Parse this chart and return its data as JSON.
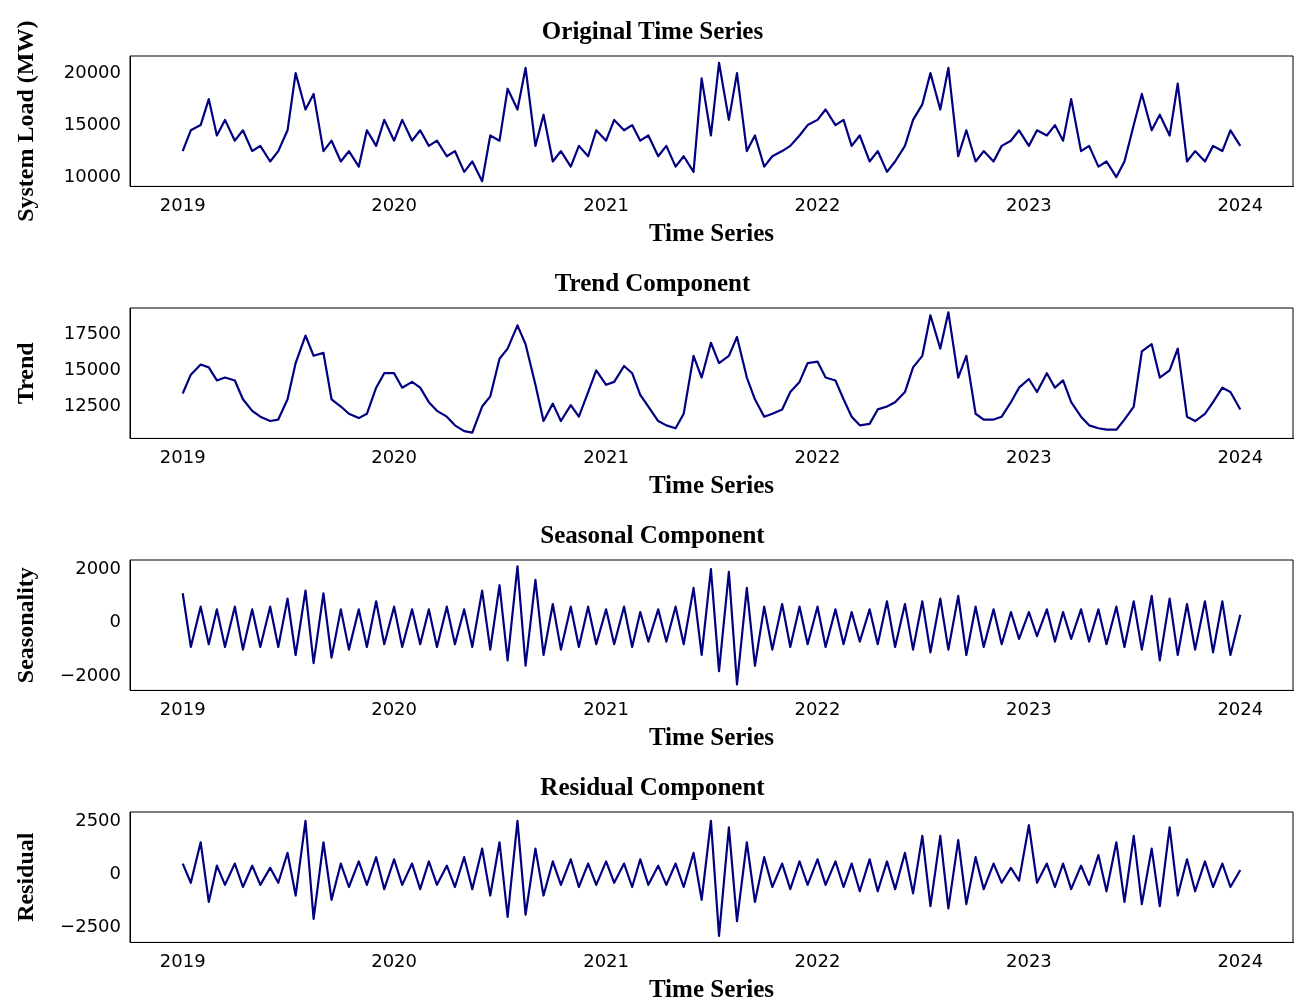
{
  "chart_data": [
    {
      "type": "line",
      "title": "Original Time Series",
      "xlabel": "Time Series",
      "ylabel": "System Load (MW)",
      "x": [
        "2019-01-01",
        "2019-01-15",
        "2019-02-01",
        "2019-02-15",
        "2019-03-01",
        "2019-03-15",
        "2019-04-01",
        "2019-04-15",
        "2019-05-01",
        "2019-05-15",
        "2019-06-01",
        "2019-06-15",
        "2019-07-01",
        "2019-07-15",
        "2019-08-01",
        "2019-08-15",
        "2019-09-01",
        "2019-09-15",
        "2019-10-01",
        "2019-10-15",
        "2019-11-01",
        "2019-11-15",
        "2019-12-01",
        "2019-12-15",
        "2020-01-01",
        "2020-01-15",
        "2020-02-01",
        "2020-02-15",
        "2020-03-01",
        "2020-03-15",
        "2020-04-01",
        "2020-04-15",
        "2020-05-01",
        "2020-05-15",
        "2020-06-01",
        "2020-06-15",
        "2020-07-01",
        "2020-07-15",
        "2020-08-01",
        "2020-08-15",
        "2020-09-01",
        "2020-09-15",
        "2020-10-01",
        "2020-10-15",
        "2020-11-01",
        "2020-11-15",
        "2020-12-01",
        "2020-12-15",
        "2021-01-01",
        "2021-01-15",
        "2021-02-01",
        "2021-02-15",
        "2021-03-01",
        "2021-03-15",
        "2021-04-01",
        "2021-04-15",
        "2021-05-01",
        "2021-05-15",
        "2021-06-01",
        "2021-06-15",
        "2021-07-01",
        "2021-07-15",
        "2021-08-01",
        "2021-08-15",
        "2021-09-01",
        "2021-09-15",
        "2021-10-01",
        "2021-10-15",
        "2021-11-01",
        "2021-11-15",
        "2021-12-01",
        "2021-12-15",
        "2022-01-01",
        "2022-01-15",
        "2022-02-01",
        "2022-02-15",
        "2022-03-01",
        "2022-03-15",
        "2022-04-01",
        "2022-04-15",
        "2022-05-01",
        "2022-05-15",
        "2022-06-01",
        "2022-06-15",
        "2022-07-01",
        "2022-07-15",
        "2022-08-01",
        "2022-08-15",
        "2022-09-01",
        "2022-09-15",
        "2022-10-01",
        "2022-10-15",
        "2022-11-01",
        "2022-11-15",
        "2022-12-01",
        "2022-12-15",
        "2023-01-01",
        "2023-01-15",
        "2023-02-01",
        "2023-02-15",
        "2023-03-01",
        "2023-03-15",
        "2023-04-01",
        "2023-04-15",
        "2023-05-01",
        "2023-05-15",
        "2023-06-01",
        "2023-06-15",
        "2023-07-01",
        "2023-07-15",
        "2023-08-01",
        "2023-08-15",
        "2023-09-01",
        "2023-09-15",
        "2023-10-01",
        "2023-10-15",
        "2023-11-01",
        "2023-11-15",
        "2023-12-01",
        "2023-12-15",
        "2024-01-01"
      ],
      "series": [
        {
          "color": "#000080",
          "values": [
            12500,
            14500,
            15000,
            17500,
            14000,
            15500,
            13500,
            14500,
            12500,
            13000,
            11500,
            12500,
            14500,
            20000,
            16500,
            18000,
            12500,
            13500,
            11500,
            12500,
            11000,
            14500,
            13000,
            15500,
            13500,
            15500,
            13500,
            14500,
            13000,
            13500,
            12000,
            12500,
            10500,
            11500,
            9600,
            14000,
            13500,
            18500,
            16500,
            20500,
            13000,
            16000,
            11500,
            12500,
            11000,
            13000,
            12000,
            14500,
            13500,
            15500,
            14500,
            15000,
            13500,
            14000,
            12000,
            13000,
            11000,
            12000,
            10500,
            19500,
            14000,
            21000,
            15500,
            20000,
            12500,
            14000,
            11000,
            12000,
            12500,
            13000,
            14000,
            15000,
            15500,
            16500,
            15000,
            15500,
            13000,
            14000,
            11500,
            12500,
            10500,
            11500,
            13000,
            15500,
            17000,
            20000,
            16500,
            20500,
            12000,
            14500,
            11500,
            12500,
            11500,
            13000,
            13500,
            14500,
            13000,
            14500,
            14000,
            15000,
            13500,
            17500,
            12500,
            13000,
            11000,
            11500,
            10000,
            11500,
            15000,
            18000,
            14500,
            16000,
            14000,
            19000,
            11500,
            12500,
            11500,
            13000,
            12500,
            14500,
            13000
          ]
        }
      ],
      "xlim": [
        "2018-10-02",
        "2024-04-01"
      ],
      "xticks": [
        "2019",
        "2020",
        "2021",
        "2022",
        "2023",
        "2024"
      ],
      "ylim": [
        9100,
        21650
      ],
      "yticks": [
        10000,
        15000,
        20000
      ]
    },
    {
      "type": "line",
      "title": "Trend Component",
      "xlabel": "Time Series",
      "ylabel": "Trend",
      "x": [
        "2019-01-01",
        "2019-01-15",
        "2019-02-01",
        "2019-02-15",
        "2019-03-01",
        "2019-03-15",
        "2019-04-01",
        "2019-04-15",
        "2019-05-01",
        "2019-05-15",
        "2019-06-01",
        "2019-06-15",
        "2019-07-01",
        "2019-07-15",
        "2019-08-01",
        "2019-08-15",
        "2019-09-01",
        "2019-09-15",
        "2019-10-01",
        "2019-10-15",
        "2019-11-01",
        "2019-11-15",
        "2019-12-01",
        "2019-12-15",
        "2020-01-01",
        "2020-01-15",
        "2020-02-01",
        "2020-02-15",
        "2020-03-01",
        "2020-03-15",
        "2020-04-01",
        "2020-04-15",
        "2020-05-01",
        "2020-05-15",
        "2020-06-01",
        "2020-06-15",
        "2020-07-01",
        "2020-07-15",
        "2020-08-01",
        "2020-08-15",
        "2020-09-01",
        "2020-09-15",
        "2020-10-01",
        "2020-10-15",
        "2020-11-01",
        "2020-11-15",
        "2020-12-01",
        "2020-12-15",
        "2021-01-01",
        "2021-01-15",
        "2021-02-01",
        "2021-02-15",
        "2021-03-01",
        "2021-03-15",
        "2021-04-01",
        "2021-04-15",
        "2021-05-01",
        "2021-05-15",
        "2021-06-01",
        "2021-06-15",
        "2021-07-01",
        "2021-07-15",
        "2021-08-01",
        "2021-08-15",
        "2021-09-01",
        "2021-09-15",
        "2021-10-01",
        "2021-10-15",
        "2021-11-01",
        "2021-11-15",
        "2021-12-01",
        "2021-12-15",
        "2022-01-01",
        "2022-01-15",
        "2022-02-01",
        "2022-02-15",
        "2022-03-01",
        "2022-03-15",
        "2022-04-01",
        "2022-04-15",
        "2022-05-01",
        "2022-05-15",
        "2022-06-01",
        "2022-06-15",
        "2022-07-01",
        "2022-07-15",
        "2022-08-01",
        "2022-08-15",
        "2022-09-01",
        "2022-09-15",
        "2022-10-01",
        "2022-10-15",
        "2022-11-01",
        "2022-11-15",
        "2022-12-01",
        "2022-12-15",
        "2023-01-01",
        "2023-01-15",
        "2023-02-01",
        "2023-02-15",
        "2023-03-01",
        "2023-03-15",
        "2023-04-01",
        "2023-04-15",
        "2023-05-01",
        "2023-05-15",
        "2023-06-01",
        "2023-06-15",
        "2023-07-01",
        "2023-07-15",
        "2023-08-01",
        "2023-08-15",
        "2023-09-01",
        "2023-09-15",
        "2023-10-01",
        "2023-10-15",
        "2023-11-01",
        "2023-11-15",
        "2023-12-01",
        "2023-12-15",
        "2024-01-01"
      ],
      "series": [
        {
          "color": "#000080",
          "values": [
            13400,
            14700,
            15400,
            15200,
            14300,
            14500,
            14300,
            13000,
            12200,
            11800,
            11500,
            11600,
            13000,
            15500,
            17400,
            16000,
            16200,
            13000,
            12500,
            12000,
            11700,
            12000,
            13800,
            14800,
            14800,
            13800,
            14200,
            13800,
            12800,
            12200,
            11800,
            11200,
            10800,
            10700,
            12500,
            13200,
            15800,
            16500,
            18100,
            16800,
            14000,
            11500,
            12700,
            11500,
            12600,
            11800,
            13500,
            15000,
            14000,
            14200,
            15300,
            14800,
            13300,
            12500,
            11500,
            11200,
            11000,
            12000,
            16000,
            14500,
            16900,
            15500,
            16000,
            17300,
            14500,
            13000,
            11800,
            12000,
            12300,
            13500,
            14200,
            15500,
            15600,
            14500,
            14300,
            13000,
            11800,
            11200,
            11300,
            12300,
            12500,
            12800,
            13500,
            15200,
            16000,
            18800,
            16500,
            19000,
            14500,
            16000,
            12000,
            11600,
            11600,
            11800,
            12800,
            13800,
            14400,
            13500,
            14800,
            13800,
            14300,
            12800,
            11800,
            11200,
            11000,
            10900,
            10900,
            11600,
            12500,
            16300,
            16800,
            14500,
            15000,
            16500,
            11800,
            11500,
            12000,
            12800,
            13800,
            13500,
            12300
          ]
        }
      ],
      "xlim": [
        "2018-10-02",
        "2024-04-01"
      ],
      "xticks": [
        "2019",
        "2020",
        "2021",
        "2022",
        "2023",
        "2024"
      ],
      "ylim": [
        10300,
        19300
      ],
      "yticks": [
        12500,
        15000,
        17500
      ]
    },
    {
      "type": "line",
      "title": "Seasonal Component",
      "xlabel": "Time Series",
      "ylabel": "Seasonality",
      "x": [
        "2019-01-01",
        "2019-01-15",
        "2019-02-01",
        "2019-02-15",
        "2019-03-01",
        "2019-03-15",
        "2019-04-01",
        "2019-04-15",
        "2019-05-01",
        "2019-05-15",
        "2019-06-01",
        "2019-06-15",
        "2019-07-01",
        "2019-07-15",
        "2019-08-01",
        "2019-08-15",
        "2019-09-01",
        "2019-09-15",
        "2019-10-01",
        "2019-10-15",
        "2019-11-01",
        "2019-11-15",
        "2019-12-01",
        "2019-12-15",
        "2020-01-01",
        "2020-01-15",
        "2020-02-01",
        "2020-02-15",
        "2020-03-01",
        "2020-03-15",
        "2020-04-01",
        "2020-04-15",
        "2020-05-01",
        "2020-05-15",
        "2020-06-01",
        "2020-06-15",
        "2020-07-01",
        "2020-07-15",
        "2020-08-01",
        "2020-08-15",
        "2020-09-01",
        "2020-09-15",
        "2020-10-01",
        "2020-10-15",
        "2020-11-01",
        "2020-11-15",
        "2020-12-01",
        "2020-12-15",
        "2021-01-01",
        "2021-01-15",
        "2021-02-01",
        "2021-02-15",
        "2021-03-01",
        "2021-03-15",
        "2021-04-01",
        "2021-04-15",
        "2021-05-01",
        "2021-05-15",
        "2021-06-01",
        "2021-06-15",
        "2021-07-01",
        "2021-07-15",
        "2021-08-01",
        "2021-08-15",
        "2021-09-01",
        "2021-09-15",
        "2021-10-01",
        "2021-10-15",
        "2021-11-01",
        "2021-11-15",
        "2021-12-01",
        "2021-12-15",
        "2022-01-01",
        "2022-01-15",
        "2022-02-01",
        "2022-02-15",
        "2022-03-01",
        "2022-03-15",
        "2022-04-01",
        "2022-04-15",
        "2022-05-01",
        "2022-05-15",
        "2022-06-01",
        "2022-06-15",
        "2022-07-01",
        "2022-07-15",
        "2022-08-01",
        "2022-08-15",
        "2022-09-01",
        "2022-09-15",
        "2022-10-01",
        "2022-10-15",
        "2022-11-01",
        "2022-11-15",
        "2022-12-01",
        "2022-12-15",
        "2023-01-01",
        "2023-01-15",
        "2023-02-01",
        "2023-02-15",
        "2023-03-01",
        "2023-03-15",
        "2023-04-01",
        "2023-04-15",
        "2023-05-01",
        "2023-05-15",
        "2023-06-01",
        "2023-06-15",
        "2023-07-01",
        "2023-07-15",
        "2023-08-01",
        "2023-08-15",
        "2023-09-01",
        "2023-09-15",
        "2023-10-01",
        "2023-10-15",
        "2023-11-01",
        "2023-11-15",
        "2023-12-01",
        "2023-12-15",
        "2024-01-01"
      ],
      "series": [
        {
          "color": "#000080",
          "values": [
            1100,
            -900,
            600,
            -800,
            500,
            -900,
            600,
            -1000,
            500,
            -900,
            600,
            -900,
            900,
            -1200,
            1200,
            -1500,
            1100,
            -1300,
            500,
            -1000,
            500,
            -900,
            800,
            -800,
            600,
            -900,
            500,
            -800,
            500,
            -900,
            600,
            -800,
            500,
            -900,
            1200,
            -1000,
            1400,
            -1400,
            2100,
            -1600,
            1600,
            -1200,
            700,
            -1000,
            600,
            -900,
            600,
            -800,
            500,
            -800,
            600,
            -900,
            400,
            -700,
            500,
            -700,
            600,
            -800,
            1300,
            -1200,
            2000,
            -1800,
            1900,
            -2300,
            1300,
            -1600,
            600,
            -1000,
            700,
            -900,
            600,
            -800,
            600,
            -900,
            500,
            -800,
            400,
            -700,
            500,
            -800,
            800,
            -900,
            700,
            -1000,
            800,
            -1100,
            900,
            -1000,
            1000,
            -1200,
            600,
            -900,
            500,
            -800,
            400,
            -600,
            400,
            -500,
            500,
            -700,
            400,
            -600,
            500,
            -700,
            500,
            -800,
            600,
            -900,
            800,
            -1000,
            1000,
            -1400,
            900,
            -1200,
            700,
            -1000,
            800,
            -1100,
            800,
            -1200,
            300
          ]
        }
      ],
      "xlim": [
        "2018-10-02",
        "2024-04-01"
      ],
      "xticks": [
        "2019",
        "2020",
        "2021",
        "2022",
        "2023",
        "2024"
      ],
      "ylim": [
        -2520,
        2340
      ],
      "yticks": [
        {
          "value": -2000,
          "label": "−2000"
        },
        0,
        2000
      ]
    },
    {
      "type": "line",
      "title": "Residual Component",
      "xlabel": "Time Series",
      "ylabel": "Residual",
      "x": [
        "2019-01-01",
        "2019-01-15",
        "2019-02-01",
        "2019-02-15",
        "2019-03-01",
        "2019-03-15",
        "2019-04-01",
        "2019-04-15",
        "2019-05-01",
        "2019-05-15",
        "2019-06-01",
        "2019-06-15",
        "2019-07-01",
        "2019-07-15",
        "2019-08-01",
        "2019-08-15",
        "2019-09-01",
        "2019-09-15",
        "2019-10-01",
        "2019-10-15",
        "2019-11-01",
        "2019-11-15",
        "2019-12-01",
        "2019-12-15",
        "2020-01-01",
        "2020-01-15",
        "2020-02-01",
        "2020-02-15",
        "2020-03-01",
        "2020-03-15",
        "2020-04-01",
        "2020-04-15",
        "2020-05-01",
        "2020-05-15",
        "2020-06-01",
        "2020-06-15",
        "2020-07-01",
        "2020-07-15",
        "2020-08-01",
        "2020-08-15",
        "2020-09-01",
        "2020-09-15",
        "2020-10-01",
        "2020-10-15",
        "2020-11-01",
        "2020-11-15",
        "2020-12-01",
        "2020-12-15",
        "2021-01-01",
        "2021-01-15",
        "2021-02-01",
        "2021-02-15",
        "2021-03-01",
        "2021-03-15",
        "2021-04-01",
        "2021-04-15",
        "2021-05-01",
        "2021-05-15",
        "2021-06-01",
        "2021-06-15",
        "2021-07-01",
        "2021-07-15",
        "2021-08-01",
        "2021-08-15",
        "2021-09-01",
        "2021-09-15",
        "2021-10-01",
        "2021-10-15",
        "2021-11-01",
        "2021-11-15",
        "2021-12-01",
        "2021-12-15",
        "2022-01-01",
        "2022-01-15",
        "2022-02-01",
        "2022-02-15",
        "2022-03-01",
        "2022-03-15",
        "2022-04-01",
        "2022-04-15",
        "2022-05-01",
        "2022-05-15",
        "2022-06-01",
        "2022-06-15",
        "2022-07-01",
        "2022-07-15",
        "2022-08-01",
        "2022-08-15",
        "2022-09-01",
        "2022-09-15",
        "2022-10-01",
        "2022-10-15",
        "2022-11-01",
        "2022-11-15",
        "2022-12-01",
        "2022-12-15",
        "2023-01-01",
        "2023-01-15",
        "2023-02-01",
        "2023-02-15",
        "2023-03-01",
        "2023-03-15",
        "2023-04-01",
        "2023-04-15",
        "2023-05-01",
        "2023-05-15",
        "2023-06-01",
        "2023-06-15",
        "2023-07-01",
        "2023-07-15",
        "2023-08-01",
        "2023-08-15",
        "2023-09-01",
        "2023-09-15",
        "2023-10-01",
        "2023-10-15",
        "2023-11-01",
        "2023-11-15",
        "2023-12-01",
        "2023-12-15",
        "2024-01-01"
      ],
      "series": [
        {
          "color": "#000080",
          "values": [
            500,
            -400,
            1500,
            -1300,
            400,
            -500,
            500,
            -600,
            400,
            -500,
            300,
            -400,
            1000,
            -1000,
            2500,
            -2100,
            1500,
            -1200,
            500,
            -600,
            600,
            -500,
            800,
            -700,
            700,
            -500,
            500,
            -700,
            600,
            -500,
            400,
            -600,
            800,
            -700,
            1200,
            -1000,
            1500,
            -2000,
            2500,
            -1900,
            1200,
            -1000,
            600,
            -500,
            700,
            -600,
            500,
            -500,
            600,
            -400,
            500,
            -600,
            700,
            -500,
            400,
            -500,
            500,
            -600,
            1000,
            -1200,
            2500,
            -2900,
            2200,
            -2200,
            1500,
            -1300,
            800,
            -600,
            500,
            -700,
            600,
            -500,
            700,
            -500,
            600,
            -600,
            500,
            -800,
            700,
            -800,
            600,
            -700,
            1000,
            -900,
            1800,
            -1500,
            1800,
            -1600,
            1600,
            -1400,
            800,
            -700,
            500,
            -400,
            300,
            -300,
            2300,
            -400,
            500,
            -600,
            500,
            -700,
            400,
            -500,
            900,
            -800,
            1500,
            -1300,
            1800,
            -1400,
            1200,
            -1500,
            2200,
            -1000,
            700,
            -800,
            600,
            -600,
            500,
            -600,
            200
          ]
        }
      ],
      "xlim": [
        "2018-10-02",
        "2024-04-01"
      ],
      "xticks": [
        "2019",
        "2020",
        "2021",
        "2022",
        "2023",
        "2024"
      ],
      "ylim": [
        -3200,
        2920
      ],
      "yticks": [
        {
          "value": -2500,
          "label": "−2500"
        },
        0,
        2500
      ]
    }
  ]
}
